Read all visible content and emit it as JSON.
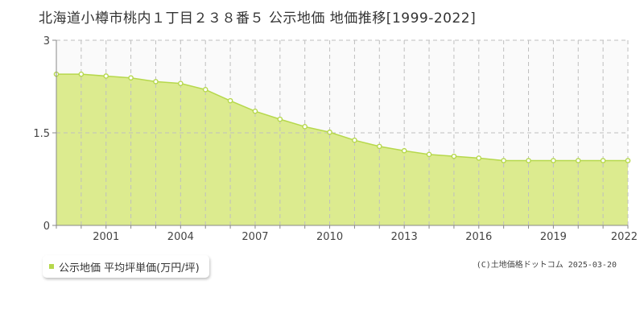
{
  "colors": {
    "fill": "#dceb8f",
    "line": "#b6d84c",
    "grid": "#bfbfbf",
    "axis": "#888888",
    "plot_bg": "#fafafa"
  },
  "footer": {
    "credit": "(C)土地価格ドットコム 2025-03-20"
  },
  "chart_data": {
    "type": "area",
    "title": "北海道小樽市桃内１丁目２３８番５ 公示地価 地価推移[1999-2022]",
    "xlabel": "",
    "ylabel": "",
    "x": [
      1999,
      2000,
      2001,
      2002,
      2003,
      2004,
      2005,
      2006,
      2007,
      2008,
      2009,
      2010,
      2011,
      2012,
      2013,
      2014,
      2015,
      2016,
      2017,
      2018,
      2019,
      2020,
      2021,
      2022
    ],
    "series": [
      {
        "name": "公示地価 平均坪単価(万円/坪)",
        "values": [
          2.45,
          2.45,
          2.42,
          2.39,
          2.33,
          2.3,
          2.2,
          2.02,
          1.85,
          1.72,
          1.6,
          1.51,
          1.38,
          1.28,
          1.21,
          1.15,
          1.12,
          1.09,
          1.05,
          1.05,
          1.05,
          1.05,
          1.05,
          1.05
        ]
      }
    ],
    "ylim": [
      0,
      3
    ],
    "yticks": [
      "0",
      "1.5",
      "3"
    ],
    "xticks": [
      "2001",
      "2004",
      "2007",
      "2010",
      "2013",
      "2016",
      "2019",
      "2022"
    ],
    "grid": true,
    "legend": "bottom-left"
  }
}
